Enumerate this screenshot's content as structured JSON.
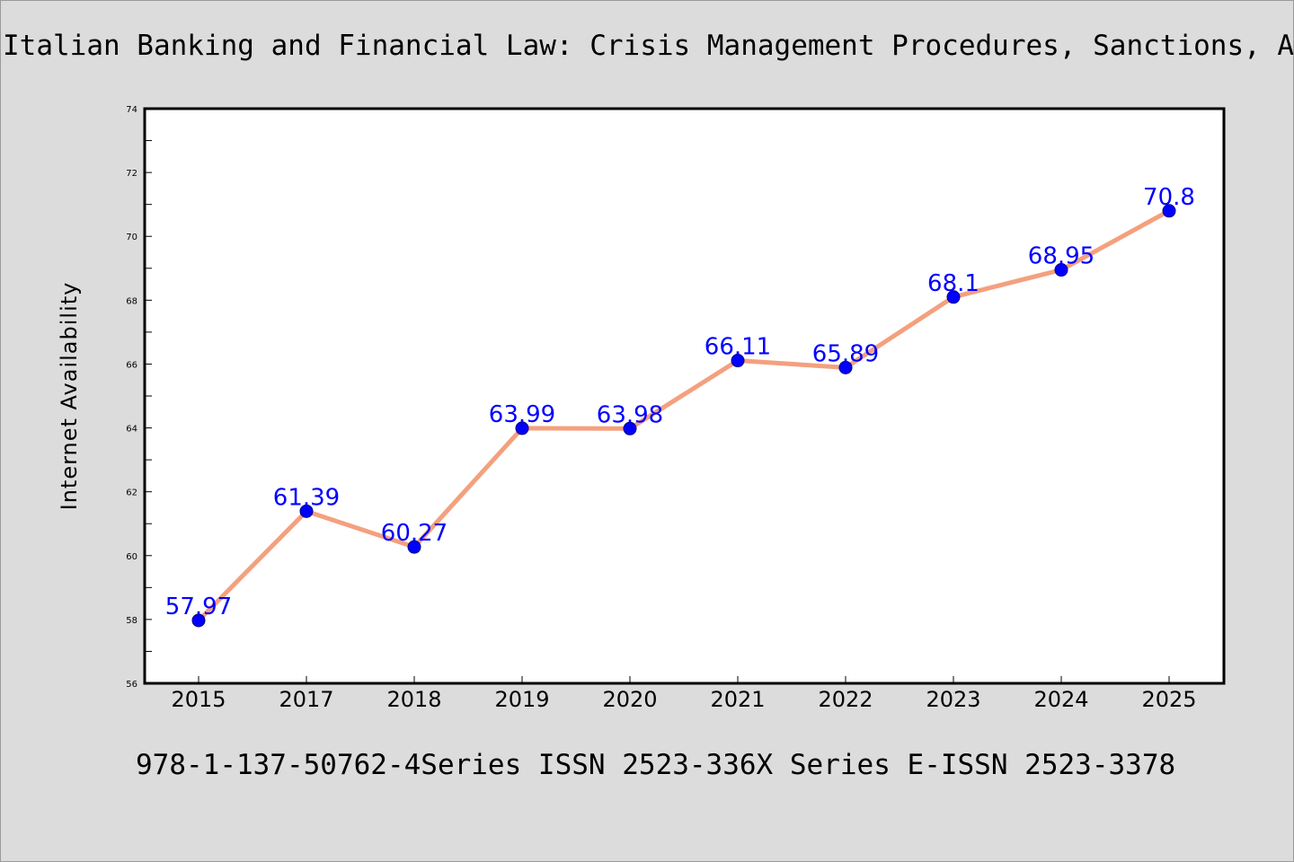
{
  "header": {
    "title": "Italian Banking and Financial Law: Crisis Management Procedures, Sanctions, Alternative Dispute Resolution Systems and Tax Rules"
  },
  "footer": {
    "text": "978-1-137-50762-4Series ISSN 2523-336X Series E-ISSN 2523-3378"
  },
  "chart_data": {
    "type": "line",
    "title": "Italian Banking and Financial Law: Crisis Management Procedures, Sanctions, Alternative Dispute Resolution Systems and Tax Rules",
    "xlabel": "",
    "ylabel": "Internet Availability",
    "categories": [
      "2015",
      "2017",
      "2018",
      "2019",
      "2020",
      "2021",
      "2022",
      "2023",
      "2024",
      "2025"
    ],
    "values": [
      57.97,
      61.39,
      60.27,
      63.99,
      63.98,
      66.11,
      65.89,
      68.1,
      68.95,
      70.8
    ],
    "data_labels": [
      "57.97",
      "61.39",
      "60.27",
      "63.99",
      "63.98",
      "66.11",
      "65.89",
      "68.1",
      "68.95",
      "70.8"
    ],
    "ylim": [
      56,
      74
    ],
    "yticks": [
      56,
      58,
      60,
      62,
      64,
      66,
      68,
      70,
      72,
      74
    ],
    "ytick_labels": [
      "56",
      "58",
      "60",
      "62",
      "64",
      "66",
      "68",
      "70",
      "72",
      "74"
    ],
    "grid": false,
    "legend": "none",
    "colors": {
      "line": "#f4a07e",
      "marker": "#0000ff",
      "data_label": "#0000ff",
      "background": "#dcdcdc",
      "plot_background": "#ffffff"
    }
  }
}
